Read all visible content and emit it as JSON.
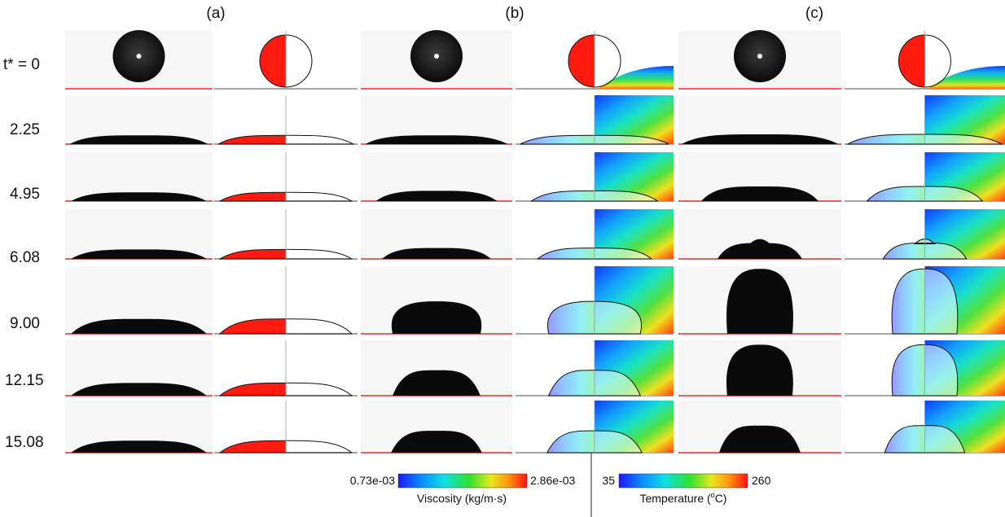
{
  "panels": [
    "(a)",
    "(b)",
    "(c)"
  ],
  "time_label": "t* = 0",
  "times": [
    "2.25",
    "4.95",
    "6.08",
    "9.00",
    "12.15",
    "15.08"
  ],
  "rows": [
    {
      "heights": [
        0.0,
        0.0,
        0.0
      ],
      "widths": [
        0.5,
        0.5,
        0.5
      ],
      "bumps": [
        0.0,
        0.0,
        0.0
      ]
    },
    {
      "heights": [
        0.18,
        0.18,
        0.2
      ],
      "widths": [
        0.94,
        0.94,
        0.96
      ],
      "bumps": [
        0.0,
        0.0,
        0.0
      ]
    },
    {
      "heights": [
        0.18,
        0.21,
        0.3
      ],
      "widths": [
        0.92,
        0.8,
        0.72
      ],
      "bumps": [
        0.0,
        0.0,
        0.0
      ]
    },
    {
      "heights": [
        0.19,
        0.22,
        0.32
      ],
      "widths": [
        0.92,
        0.72,
        0.52
      ],
      "bumps": [
        0.0,
        0.0,
        0.18
      ]
    },
    {
      "heights": [
        0.22,
        0.48,
        0.96
      ],
      "widths": [
        0.92,
        0.58,
        0.4
      ],
      "bumps": [
        0.0,
        0.0,
        0.0
      ]
    },
    {
      "heights": [
        0.23,
        0.46,
        0.92
      ],
      "widths": [
        0.92,
        0.58,
        0.4
      ],
      "bumps": [
        0.0,
        0.0,
        0.0
      ]
    },
    {
      "heights": [
        0.23,
        0.42,
        0.52
      ],
      "widths": [
        0.92,
        0.6,
        0.5
      ],
      "bumps": [
        0.0,
        0.0,
        0.0
      ]
    }
  ],
  "colorbars": {
    "viscosity": {
      "min_label": "0.73e-03",
      "max_label": "2.86e-03",
      "title": "Viscosity (kg/m·s)"
    },
    "temperature": {
      "min_label": "35",
      "max_label": "260",
      "title_prefix": "Temperature (",
      "unit_sup": "o",
      "unit": "C)"
    }
  },
  "colors": {
    "substrate": "#ff2020",
    "drop": "#0a0a0a",
    "sim_red": "#ff1a10",
    "outline": "#111111"
  }
}
